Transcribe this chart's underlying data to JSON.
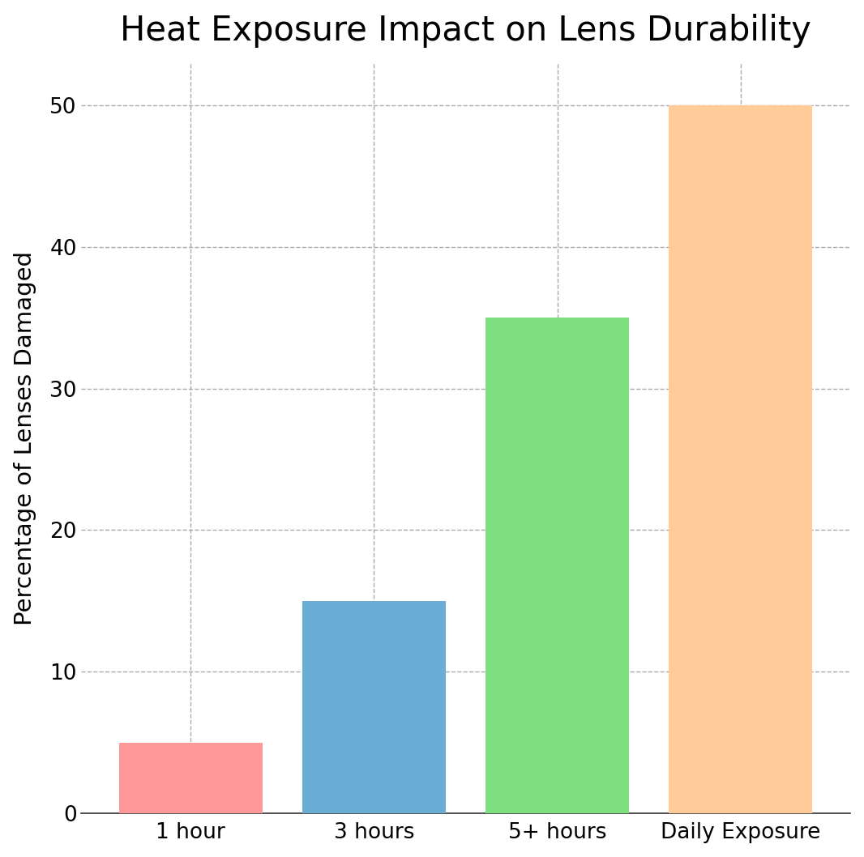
{
  "categories": [
    "1 hour",
    "3 hours",
    "5+ hours",
    "Daily Exposure"
  ],
  "values": [
    5,
    15,
    35,
    50
  ],
  "bar_colors": [
    "#FF9999",
    "#6aaed6",
    "#7FE07F",
    "#FFCC99"
  ],
  "title": "Heat Exposure Impact on Lens Durability",
  "ylabel": "Percentage of Lenses Damaged",
  "ylim": [
    0,
    53
  ],
  "yticks": [
    0,
    10,
    20,
    30,
    40,
    50
  ],
  "title_fontsize": 30,
  "label_fontsize": 21,
  "tick_fontsize": 19,
  "background_color": "#ffffff",
  "grid_color": "#aaaaaa",
  "bar_width": 0.78,
  "edge_color": "none"
}
